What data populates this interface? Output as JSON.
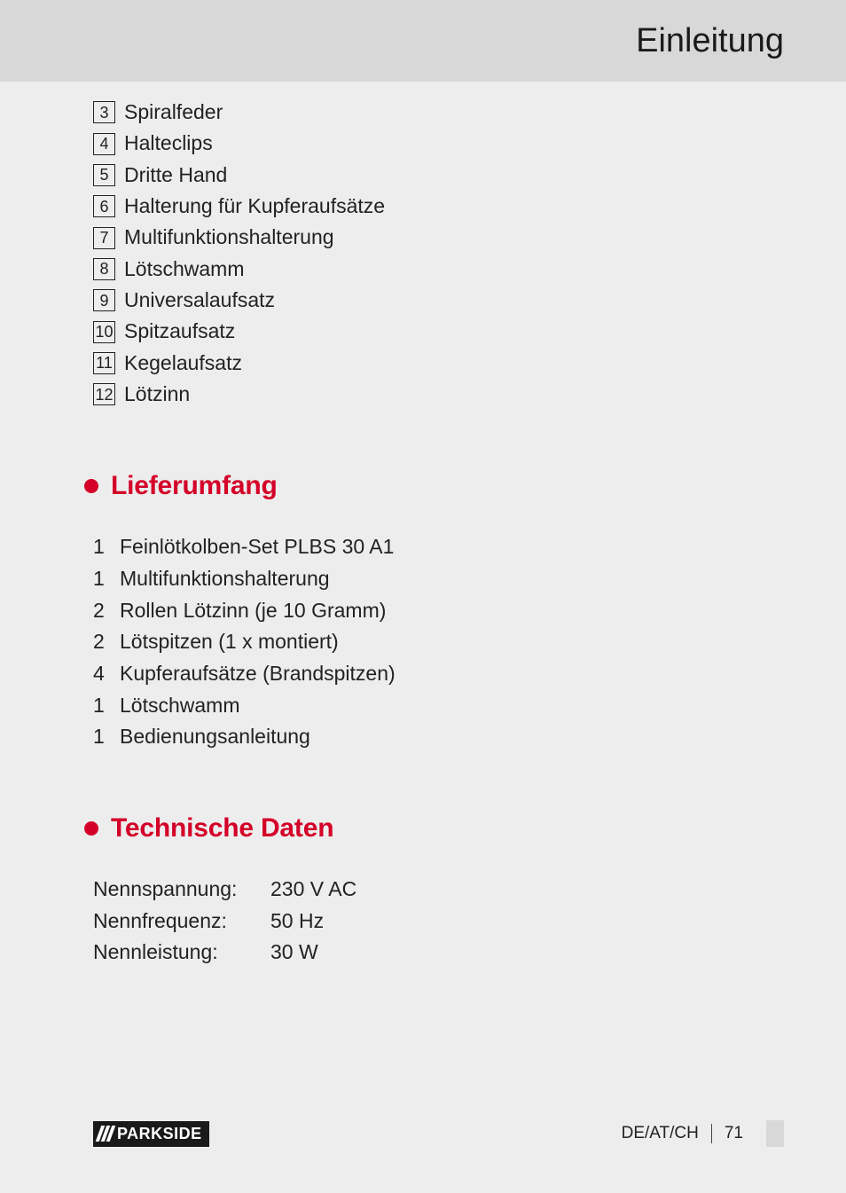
{
  "header": {
    "title": "Einleitung"
  },
  "parts": [
    {
      "num": "3",
      "label": "Spiralfeder"
    },
    {
      "num": "4",
      "label": "Halteclips"
    },
    {
      "num": "5",
      "label": "Dritte Hand"
    },
    {
      "num": "6",
      "label": "Halterung für Kupferaufsätze"
    },
    {
      "num": "7",
      "label": "Multifunktionshalterung"
    },
    {
      "num": "8",
      "label": "Lötschwamm"
    },
    {
      "num": "9",
      "label": "Universalaufsatz"
    },
    {
      "num": "10",
      "label": "Spitzaufsatz"
    },
    {
      "num": "11",
      "label": "Kegelaufsatz"
    },
    {
      "num": "12",
      "label": "Lötzinn"
    }
  ],
  "sections": {
    "scope": {
      "title": "Lieferumfang",
      "items": [
        {
          "qty": "1",
          "label": "Feinlötkolben-Set PLBS 30 A1"
        },
        {
          "qty": "1",
          "label": "Multifunktionshalterung"
        },
        {
          "qty": "2",
          "label": "Rollen Lötzinn (je 10 Gramm)"
        },
        {
          "qty": "2",
          "label": "Lötspitzen (1 x montiert)"
        },
        {
          "qty": "4",
          "label": "Kupferaufsätze (Brandspitzen)"
        },
        {
          "qty": "1",
          "label": "Lötschwamm"
        },
        {
          "qty": "1",
          "label": "Bedienungsanleitung"
        }
      ]
    },
    "tech": {
      "title": "Technische Daten",
      "rows": [
        {
          "key": "Nennspannung:",
          "val": "230 V AC"
        },
        {
          "key": "Nennfrequenz:",
          "val": "50 Hz"
        },
        {
          "key": "Nennleistung:",
          "val": "30 W"
        }
      ]
    }
  },
  "footer": {
    "brand": "PARKSIDE",
    "region": "DE/AT/CH",
    "page": "71"
  },
  "colors": {
    "accent": "#d40028",
    "header_bg": "#d8d8d8",
    "page_bg": "#ededed",
    "text": "#222"
  }
}
